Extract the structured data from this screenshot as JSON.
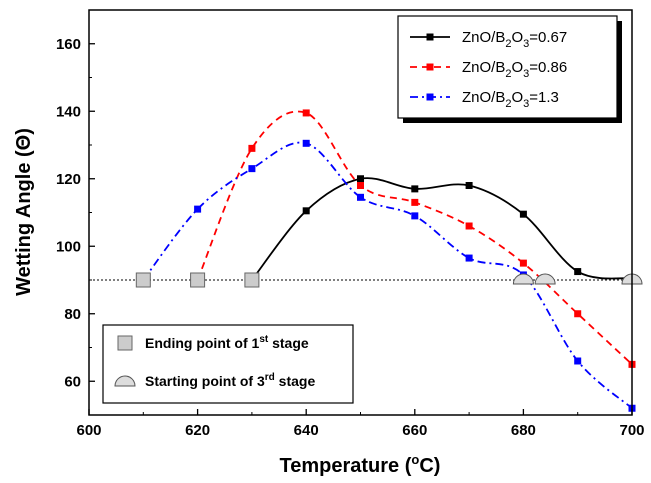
{
  "chart_data": {
    "type": "line",
    "xlabel": "Temperature (",
    "xlabel_sup": "o",
    "xlabel_tail": "C)",
    "ylabel": "Wetting Angle (Θ)",
    "xlim": [
      600,
      700
    ],
    "ylim": [
      50,
      170
    ],
    "x_ticks": [
      "600",
      "620",
      "640",
      "660",
      "680",
      "700"
    ],
    "y_ticks": [
      "60",
      "80",
      "100",
      "120",
      "140",
      "160"
    ],
    "x_tick_values": [
      600,
      620,
      640,
      660,
      680,
      700
    ],
    "y_tick_values": [
      60,
      80,
      100,
      120,
      140,
      160
    ],
    "reference_line_y": 90,
    "series": [
      {
        "name": "ZnO/B2O3=0.67",
        "label_main": "ZnO/B",
        "label_sub1": "2",
        "label_mid": "O",
        "label_sub2": "3",
        "label_tail": "=0.67",
        "color": "#000000",
        "dash": "solid",
        "x": [
          630,
          640,
          650,
          660,
          670,
          680,
          690,
          700
        ],
        "y": [
          90,
          110.5,
          120,
          117,
          118,
          109.5,
          92.5,
          90.5
        ]
      },
      {
        "name": "ZnO/B2O3=0.86",
        "label_main": "ZnO/B",
        "label_sub1": "2",
        "label_mid": "O",
        "label_sub2": "3",
        "label_tail": "=0.86",
        "color": "#ff0000",
        "dash": "dash",
        "x": [
          620,
          630,
          640,
          650,
          660,
          670,
          680,
          690,
          700
        ],
        "y": [
          90,
          129,
          139.5,
          118,
          113,
          106,
          95,
          80,
          65
        ]
      },
      {
        "name": "ZnO/B2O3=1.3",
        "label_main": "ZnO/B",
        "label_sub1": "2",
        "label_mid": "O",
        "label_sub2": "3",
        "label_tail": "=1.3",
        "color": "#0000ff",
        "dash": "dashdot",
        "x": [
          610,
          620,
          630,
          640,
          650,
          660,
          670,
          680,
          690,
          700
        ],
        "y": [
          90,
          111,
          123,
          130.5,
          114.5,
          109,
          96.5,
          91.5,
          66,
          52
        ]
      }
    ],
    "ending_points": {
      "x": [
        610,
        620,
        630
      ],
      "y": [
        90,
        90,
        90
      ]
    },
    "starting_points": {
      "x": [
        680,
        684,
        700
      ],
      "y": [
        90,
        90,
        90
      ]
    },
    "marker_legend": {
      "ending_text": "Ending point of 1",
      "ending_sup": "st",
      "ending_tail": " stage",
      "starting_text": "Starting point of 3",
      "starting_sup": "rd",
      "starting_tail": " stage"
    },
    "legend_position": "top-right",
    "marker_legend_position": "bottom-left",
    "grid": false
  }
}
